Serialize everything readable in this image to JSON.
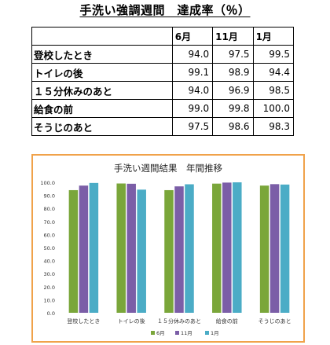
{
  "page_title": "手洗い強調週間　達成率（％）",
  "table": {
    "columns": [
      "6月",
      "11月",
      "1月"
    ],
    "rows": [
      {
        "label": "登校したとき",
        "values": [
          "94.0",
          "97.5",
          "99.5"
        ]
      },
      {
        "label": "トイレの後",
        "values": [
          "99.1",
          "98.9",
          "94.4"
        ]
      },
      {
        "label": "１５分休みのあと",
        "values": [
          "94.0",
          "96.9",
          "98.5"
        ]
      },
      {
        "label": "給食の前",
        "values": [
          "99.0",
          "99.8",
          "100.0"
        ]
      },
      {
        "label": "そうじのあと",
        "values": [
          "97.5",
          "98.6",
          "98.3"
        ]
      }
    ]
  },
  "chart_data": {
    "type": "bar",
    "title": "手洗い週間結果　年間推移",
    "categories": [
      "登校したとき",
      "トイレの後",
      "１５分休みのあと",
      "給食の前",
      "そうじのあと"
    ],
    "series": [
      {
        "name": "6月",
        "values": [
          94.0,
          99.1,
          94.0,
          99.0,
          97.5
        ],
        "color": "#7aa63a"
      },
      {
        "name": "11月",
        "values": [
          97.5,
          98.9,
          96.9,
          99.8,
          98.6
        ],
        "color": "#7b5ea7"
      },
      {
        "name": "1月",
        "values": [
          99.5,
          94.4,
          98.5,
          100.0,
          98.3
        ],
        "color": "#4bacc6"
      }
    ],
    "ylim": [
      0,
      100
    ],
    "yticks": [
      "0.0",
      "10.0",
      "20.0",
      "30.0",
      "40.0",
      "50.0",
      "60.0",
      "70.0",
      "80.0",
      "90.0",
      "100.0"
    ],
    "grid": false,
    "legend_position": "bottom",
    "xlabel": "",
    "ylabel": ""
  }
}
